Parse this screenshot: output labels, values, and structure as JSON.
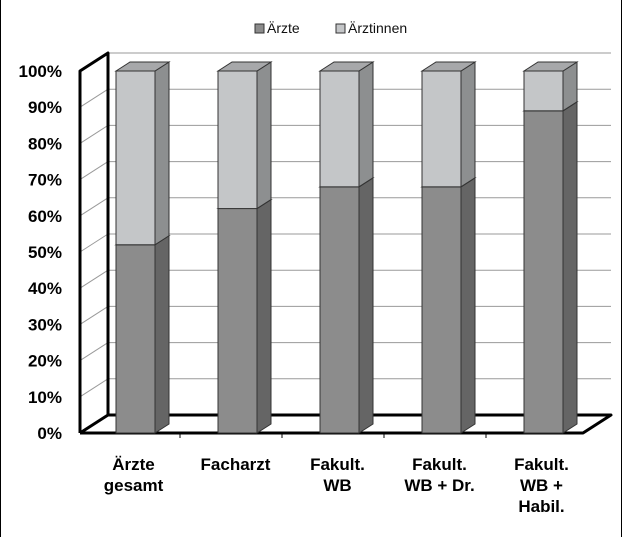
{
  "chart_data": {
    "type": "bar",
    "stacked": true,
    "percent": true,
    "three_d": true,
    "categories": [
      [
        "Ärzte",
        "gesamt"
      ],
      [
        "Facharzt"
      ],
      [
        "Fakult.",
        "WB"
      ],
      [
        "Fakult.",
        "WB + Dr."
      ],
      [
        "Fakult.",
        "WB +",
        "Habil."
      ]
    ],
    "series": [
      {
        "name": "Ärzte",
        "values": [
          52,
          62,
          68,
          68,
          89
        ],
        "color": "#8c8c8c"
      },
      {
        "name": "Ärztinnen",
        "values": [
          48,
          38,
          32,
          32,
          11
        ],
        "color": "#c4c6c8"
      }
    ],
    "y_ticks": [
      "0%",
      "10%",
      "20%",
      "30%",
      "40%",
      "50%",
      "60%",
      "70%",
      "80%",
      "90%",
      "100%"
    ],
    "ylim": [
      0,
      100
    ],
    "grid": true,
    "legend_position": "top-center"
  }
}
